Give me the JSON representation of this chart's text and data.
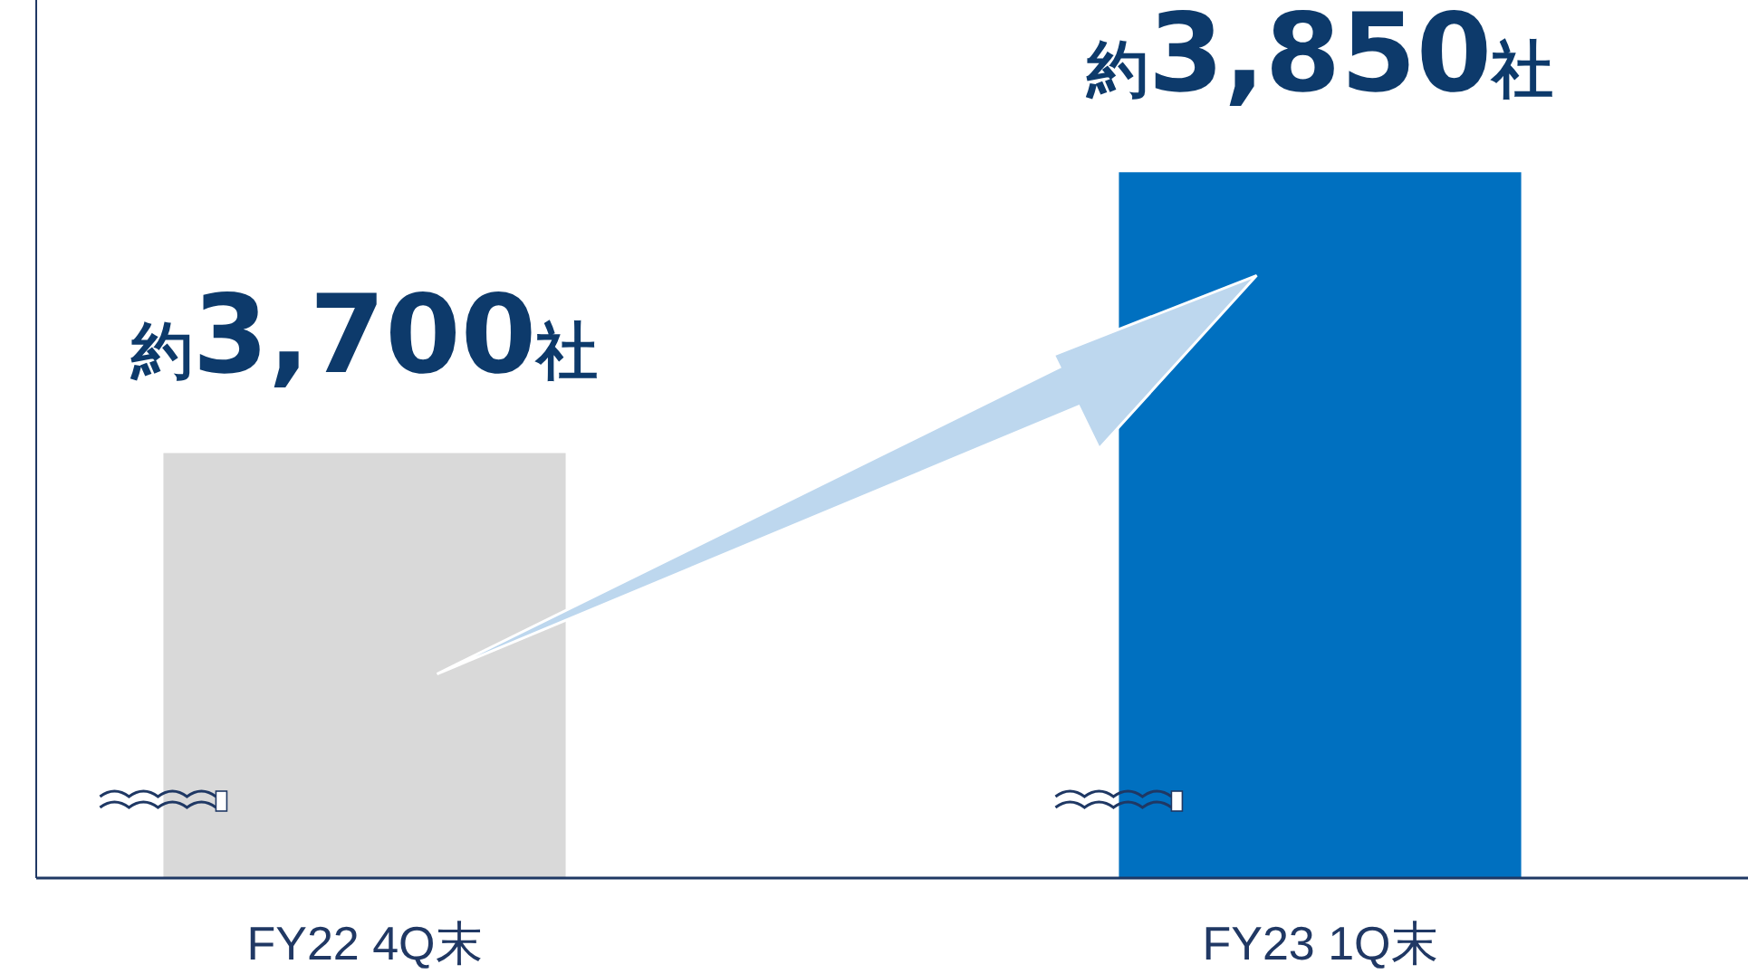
{
  "chart_data": {
    "type": "bar",
    "categories": [
      "FY22 4Q末",
      "FY23 1Q末"
    ],
    "values": [
      3700,
      3850
    ],
    "colors": [
      "#d9d9d9",
      "#0070c0"
    ],
    "value_labels": [
      "約3,700社",
      "約3,850社"
    ],
    "ylim": [
      3473,
      3942
    ],
    "tick_labels": "x"
  }
}
